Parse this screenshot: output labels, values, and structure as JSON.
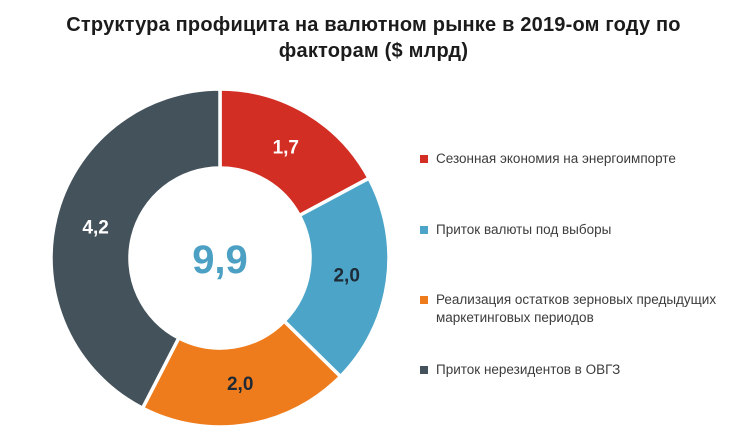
{
  "title": {
    "line1": "Структура профицита на валютном рынке в 2019-ом году по",
    "line2": "факторам ($ млрд)"
  },
  "chart_data": {
    "type": "pie",
    "subtype": "donut",
    "title": "Структура профицита на валютном рынке в 2019-ом году по факторам ($ млрд)",
    "unit": "$ млрд",
    "total_value": 9.9,
    "center_label": "9,9",
    "start_angle_deg": 0,
    "direction": "clockwise",
    "legend_position": "right",
    "segments": [
      {
        "label": "Сезонная экономия на энергоимпорте",
        "value": 1.7,
        "value_label": "1,7",
        "color": "#d32e23",
        "value_label_color": "#ffffff"
      },
      {
        "label": "Приток валюты под выборы",
        "value": 2.0,
        "value_label": "2,0",
        "color": "#4ca5c8",
        "value_label_color": "#1e2a36"
      },
      {
        "label": "Реализация остатков зерновых предыдущих маркетинговых периодов",
        "value": 2.0,
        "value_label": "2,0",
        "color": "#ef7c1c",
        "value_label_color": "#1e2a36"
      },
      {
        "label": "Приток нерезидентов в ОВГЗ",
        "value": 4.2,
        "value_label": "4,2",
        "color": "#44525b",
        "value_label_color": "#ffffff"
      }
    ],
    "colors": {
      "background": "#ffffff",
      "title_text": "#1b1b1b",
      "legend_text": "#3c3c3c",
      "center_label": "#4ba0c4",
      "segment_gap": "#ffffff"
    }
  }
}
